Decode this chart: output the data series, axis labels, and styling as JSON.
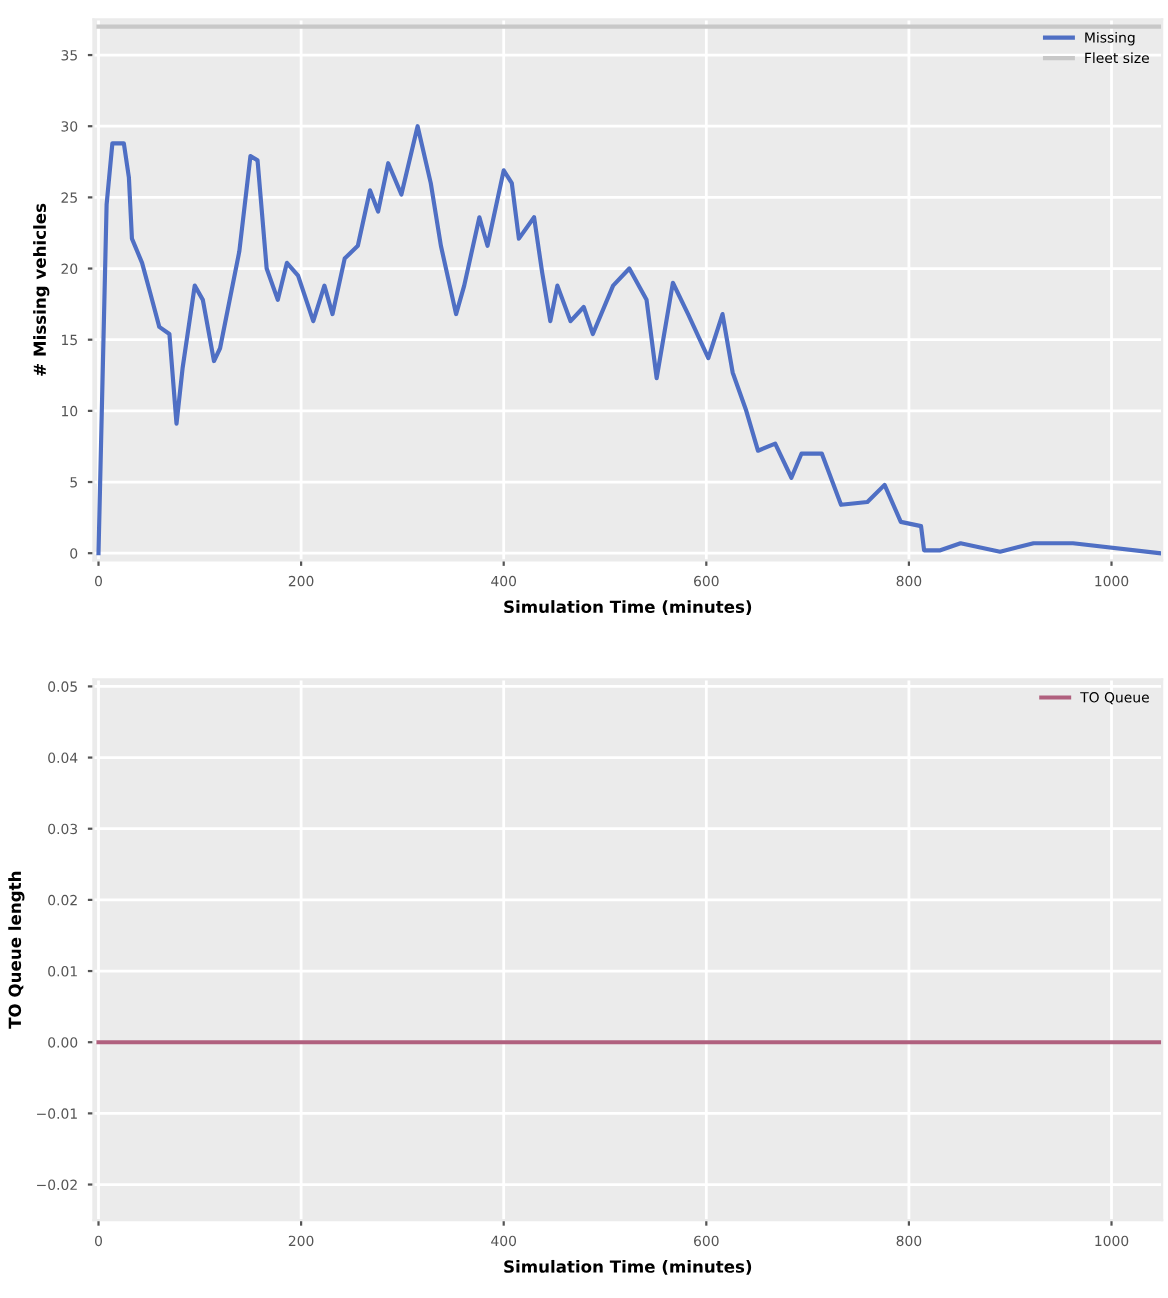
{
  "chart_data": [
    {
      "type": "line",
      "xlabel": "Simulation Time (minutes)",
      "ylabel": "# Missing vehicles",
      "xlim": [
        -5,
        1050
      ],
      "xticks": [
        0,
        200,
        400,
        600,
        800,
        1000
      ],
      "ylim": [
        -0.5,
        37.5
      ],
      "yticks": [
        0,
        5,
        10,
        15,
        20,
        25,
        30,
        35
      ],
      "grid": true,
      "legend": "top right",
      "series": [
        {
          "name": "Missing",
          "color": "#4f6fc4",
          "x": [
            0,
            8,
            13.7,
            25,
            30,
            33,
            43,
            51,
            60,
            70,
            77,
            83,
            95,
            103,
            114,
            120,
            139,
            150,
            157,
            166,
            177,
            186,
            197,
            212,
            223,
            231,
            243,
            256,
            268,
            276,
            286,
            299,
            315,
            328,
            338,
            353,
            361,
            376,
            384,
            400,
            408,
            415,
            430,
            438,
            446,
            453,
            466,
            479,
            488,
            508,
            524,
            541,
            551,
            567,
            582,
            602,
            616,
            626,
            639,
            651,
            668,
            684,
            694,
            714,
            733,
            759,
            776,
            792,
            812,
            815,
            831,
            851,
            890,
            923,
            962,
            1047
          ],
          "values": [
            0,
            24.5,
            28.8,
            28.8,
            26.4,
            22.1,
            20.4,
            18.3,
            15.9,
            15.4,
            9.1,
            13,
            18.8,
            17.8,
            13.5,
            14.4,
            21.2,
            27.9,
            27.6,
            20,
            17.8,
            20.4,
            19.5,
            16.3,
            18.8,
            16.8,
            20.7,
            21.6,
            25.5,
            24,
            27.4,
            25.2,
            30,
            26,
            21.6,
            16.8,
            18.8,
            23.6,
            21.6,
            26.9,
            26,
            22.1,
            23.6,
            19.7,
            16.3,
            18.8,
            16.3,
            17.3,
            15.4,
            18.8,
            20,
            17.8,
            12.3,
            19,
            16.8,
            13.7,
            16.8,
            12.7,
            10.1,
            7.2,
            7.7,
            5.3,
            7,
            7,
            3.4,
            3.6,
            4.8,
            2.2,
            1.9,
            0.2,
            0.2,
            0.7,
            0.1,
            0.7,
            0.7,
            0
          ]
        },
        {
          "name": "Fleet size",
          "color": "#c8c8c8",
          "x": [
            0,
            1050
          ],
          "values": [
            37,
            37
          ]
        }
      ]
    },
    {
      "type": "line",
      "xlabel": "Simulation Time (minutes)",
      "ylabel": "TO Queue length",
      "xlim": [
        -5,
        1050
      ],
      "xticks": [
        0,
        200,
        400,
        600,
        800,
        1000
      ],
      "ylim": [
        -0.025,
        0.051
      ],
      "yticks": [
        {
          "value": 0.05,
          "label": "0.05"
        },
        {
          "value": 0.04,
          "label": "0.04"
        },
        {
          "value": 0.03,
          "label": "0.03"
        },
        {
          "value": 0.02,
          "label": "0.02"
        },
        {
          "value": 0.01,
          "label": "0.01"
        },
        {
          "value": 0,
          "label": "0.00"
        },
        {
          "value": -0.01,
          "label": "−0.01"
        },
        {
          "value": -0.02,
          "label": "−0.02"
        }
      ],
      "grid": true,
      "legend": "top right",
      "series": [
        {
          "name": "TO Queue",
          "color": "#b0607e",
          "x": [
            0,
            1050
          ],
          "values": [
            0,
            0
          ]
        }
      ]
    }
  ]
}
